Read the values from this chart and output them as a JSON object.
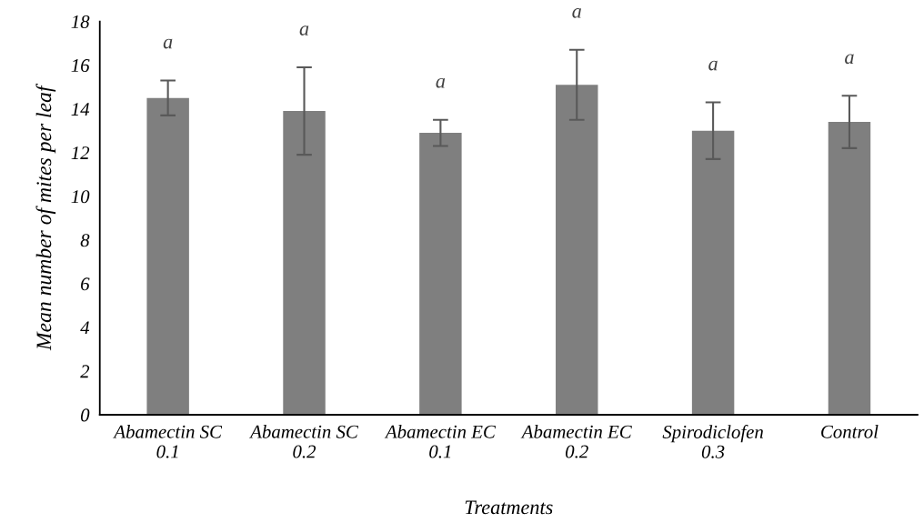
{
  "chart_data": {
    "type": "bar",
    "xlabel": "Treatments",
    "ylabel": "Mean number of mites per leaf",
    "categories": [
      "Abamectin SC\n0.1",
      "Abamectin SC\n0.2",
      "Abamectin EC\n0.1",
      "Abamectin EC\n0.2",
      "Spirodiclofen\n0.3",
      "Control"
    ],
    "values": [
      14.5,
      13.9,
      12.9,
      15.1,
      13.0,
      13.4
    ],
    "errors": [
      0.8,
      2.0,
      0.6,
      1.6,
      1.3,
      1.2
    ],
    "color": "#7f7f7f",
    "ylim": [
      0,
      18
    ],
    "yticks": [
      0,
      2,
      4,
      6,
      8,
      10,
      12,
      14,
      16,
      18
    ],
    "grid": false,
    "annotations": [
      "a",
      "a",
      "a",
      "a",
      "a",
      "a"
    ]
  }
}
